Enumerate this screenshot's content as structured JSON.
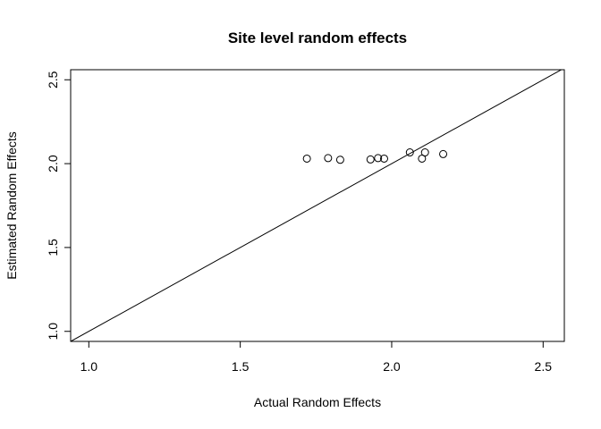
{
  "chart_data": {
    "type": "scatter",
    "title": "Site level random effects",
    "xlabel": "Actual Random Effects",
    "ylabel": "Estimated Random Effects",
    "xlim": [
      0.94,
      2.57
    ],
    "ylim": [
      0.94,
      2.56
    ],
    "x_ticks": [
      "1.0",
      "1.5",
      "2.0",
      "2.5"
    ],
    "y_ticks": [
      "1.0",
      "1.5",
      "2.0",
      "2.5"
    ],
    "grid": false,
    "reference_line": {
      "type": "identity",
      "slope": 1,
      "intercept": 0
    },
    "series": [
      {
        "marker": "open-circle",
        "x": [
          1.72,
          1.79,
          1.83,
          1.93,
          1.955,
          1.975,
          2.06,
          2.1,
          2.11,
          2.17
        ],
        "y": [
          2.03,
          2.033,
          2.023,
          2.025,
          2.033,
          2.03,
          2.067,
          2.03,
          2.067,
          2.057
        ]
      }
    ]
  }
}
